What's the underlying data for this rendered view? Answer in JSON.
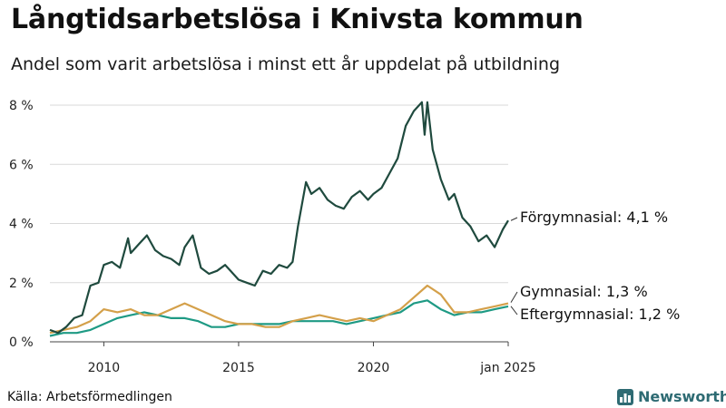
{
  "chart_data": {
    "type": "line",
    "title": "Långtidsarbetslösa i Knivsta kommun",
    "subtitle": "Andel som varit arbetslösa i minst ett år uppdelat på utbildning",
    "xlabel": "",
    "ylabel": "",
    "xlim": [
      2008.0,
      2025.0
    ],
    "ylim": [
      0,
      8
    ],
    "y_ticks": [
      {
        "value": 0,
        "label": "0 %"
      },
      {
        "value": 2,
        "label": "2 %"
      },
      {
        "value": 4,
        "label": "4 %"
      },
      {
        "value": 6,
        "label": "6 %"
      },
      {
        "value": 8,
        "label": "8 %"
      }
    ],
    "x_ticks": [
      {
        "value": 2010,
        "label": "2010"
      },
      {
        "value": 2015,
        "label": "2015"
      },
      {
        "value": 2020,
        "label": "2020"
      },
      {
        "value": 2025,
        "label": "jan 2025"
      }
    ],
    "series": [
      {
        "name": "Förgymnasial",
        "end_label": "Förgymnasial: 4,1 %",
        "color": "#1f4a3e",
        "x": [
          2008.0,
          2008.3,
          2008.6,
          2008.9,
          2009.2,
          2009.5,
          2009.8,
          2010.0,
          2010.3,
          2010.6,
          2010.9,
          2011.0,
          2011.3,
          2011.6,
          2011.9,
          2012.2,
          2012.5,
          2012.8,
          2013.0,
          2013.3,
          2013.6,
          2013.9,
          2014.2,
          2014.5,
          2014.8,
          2015.0,
          2015.3,
          2015.6,
          2015.9,
          2016.2,
          2016.5,
          2016.8,
          2017.0,
          2017.2,
          2017.5,
          2017.7,
          2018.0,
          2018.3,
          2018.6,
          2018.9,
          2019.2,
          2019.5,
          2019.8,
          2020.0,
          2020.3,
          2020.6,
          2020.9,
          2021.2,
          2021.5,
          2021.8,
          2021.9,
          2022.0,
          2022.2,
          2022.5,
          2022.8,
          2023.0,
          2023.3,
          2023.6,
          2023.9,
          2024.2,
          2024.5,
          2024.8,
          2025.0
        ],
        "values": [
          0.4,
          0.3,
          0.5,
          0.8,
          0.9,
          1.9,
          2.0,
          2.6,
          2.7,
          2.5,
          3.5,
          3.0,
          3.3,
          3.6,
          3.1,
          2.9,
          2.8,
          2.6,
          3.2,
          3.6,
          2.5,
          2.3,
          2.4,
          2.6,
          2.3,
          2.1,
          2.0,
          1.9,
          2.4,
          2.3,
          2.6,
          2.5,
          2.7,
          3.9,
          5.4,
          5.0,
          5.2,
          4.8,
          4.6,
          4.5,
          4.9,
          5.1,
          4.8,
          5.0,
          5.2,
          5.7,
          6.2,
          7.3,
          7.8,
          8.1,
          7.0,
          8.1,
          6.5,
          5.5,
          4.8,
          5.0,
          4.2,
          3.9,
          3.4,
          3.6,
          3.2,
          3.8,
          4.1
        ]
      },
      {
        "name": "Gymnasial",
        "end_label": "Gymnasial: 1,3 %",
        "color": "#d4a04a",
        "x": [
          2008.0,
          2008.5,
          2009.0,
          2009.5,
          2010.0,
          2010.5,
          2011.0,
          2011.5,
          2012.0,
          2012.5,
          2013.0,
          2013.5,
          2014.0,
          2014.5,
          2015.0,
          2015.5,
          2016.0,
          2016.5,
          2017.0,
          2017.5,
          2018.0,
          2018.5,
          2019.0,
          2019.5,
          2020.0,
          2020.5,
          2021.0,
          2021.5,
          2022.0,
          2022.5,
          2023.0,
          2023.5,
          2024.0,
          2024.5,
          2025.0
        ],
        "values": [
          0.3,
          0.4,
          0.5,
          0.7,
          1.1,
          1.0,
          1.1,
          0.9,
          0.9,
          1.1,
          1.3,
          1.1,
          0.9,
          0.7,
          0.6,
          0.6,
          0.5,
          0.5,
          0.7,
          0.8,
          0.9,
          0.8,
          0.7,
          0.8,
          0.7,
          0.9,
          1.1,
          1.5,
          1.9,
          1.6,
          1.0,
          1.0,
          1.1,
          1.2,
          1.3
        ]
      },
      {
        "name": "Eftergymnasial",
        "end_label": "Eftergymnasial: 1,2 %",
        "color": "#1e9a84",
        "x": [
          2008.0,
          2008.5,
          2009.0,
          2009.5,
          2010.0,
          2010.5,
          2011.0,
          2011.5,
          2012.0,
          2012.5,
          2013.0,
          2013.5,
          2014.0,
          2014.5,
          2015.0,
          2015.5,
          2016.0,
          2016.5,
          2017.0,
          2017.5,
          2018.0,
          2018.5,
          2019.0,
          2019.5,
          2020.0,
          2020.5,
          2021.0,
          2021.5,
          2022.0,
          2022.5,
          2023.0,
          2023.5,
          2024.0,
          2024.5,
          2025.0
        ],
        "values": [
          0.2,
          0.3,
          0.3,
          0.4,
          0.6,
          0.8,
          0.9,
          1.0,
          0.9,
          0.8,
          0.8,
          0.7,
          0.5,
          0.5,
          0.6,
          0.6,
          0.6,
          0.6,
          0.7,
          0.7,
          0.7,
          0.7,
          0.6,
          0.7,
          0.8,
          0.9,
          1.0,
          1.3,
          1.4,
          1.1,
          0.9,
          1.0,
          1.0,
          1.1,
          1.2
        ]
      }
    ],
    "source": "Källa: Arbetsförmedlingen"
  },
  "brand": {
    "name": "Newsworthy",
    "color": "#2e6b73",
    "icon": "bar-chart-icon"
  }
}
